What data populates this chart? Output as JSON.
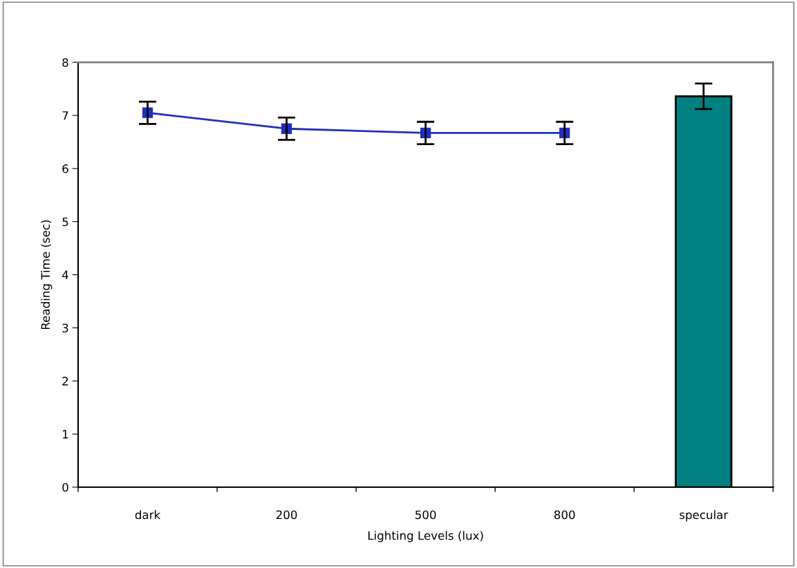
{
  "chart_data": {
    "type": "line",
    "xlabel": "Lighting Levels (lux)",
    "ylabel": "Reading Time (sec)",
    "categories": [
      "dark",
      "200",
      "500",
      "800",
      "specular"
    ],
    "series": [
      {
        "color": "#1f2fbf",
        "values": [
          7.05,
          6.75,
          6.67,
          6.67,
          null
        ],
        "errors": [
          0.21,
          0.21,
          0.21,
          0.21,
          null
        ]
      },
      {
        "type": "bar",
        "color": "#008080",
        "values": [
          null,
          null,
          null,
          null,
          7.36
        ],
        "errors": [
          null,
          null,
          null,
          null,
          0.24
        ]
      }
    ],
    "ylim": [
      0,
      8
    ],
    "yticks": [
      0,
      1,
      2,
      3,
      4,
      5,
      6,
      7,
      8
    ],
    "grid": false,
    "legend": false,
    "marker": "square",
    "line_style": "solid"
  }
}
